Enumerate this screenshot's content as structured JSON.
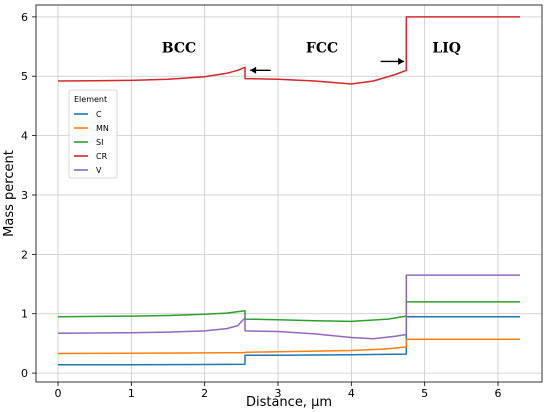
{
  "chart_data": {
    "type": "line",
    "xlabel": "Distance, µm",
    "ylabel": "Mass percent",
    "xlim": [
      -0.3,
      6.6
    ],
    "ylim": [
      -0.15,
      6.2
    ],
    "xticks": [
      0,
      1,
      2,
      3,
      4,
      5,
      6
    ],
    "yticks": [
      0,
      1,
      2,
      3,
      4,
      5,
      6
    ],
    "grid": true,
    "legend": {
      "title": "Element",
      "placement": "upper-left"
    },
    "series": [
      {
        "name": "C",
        "color": "#1f77b4",
        "x": [
          0,
          1,
          2,
          2.55,
          2.55,
          3,
          4,
          4.75,
          4.75,
          5.5,
          6.3
        ],
        "y": [
          0.14,
          0.14,
          0.145,
          0.15,
          0.3,
          0.3,
          0.31,
          0.32,
          0.95,
          0.95,
          0.95
        ]
      },
      {
        "name": "MN",
        "color": "#ff7f0e",
        "x": [
          0,
          1,
          2,
          2.55,
          2.55,
          3,
          3.5,
          4,
          4.5,
          4.75,
          4.75,
          5.5,
          6.3
        ],
        "y": [
          0.33,
          0.335,
          0.34,
          0.345,
          0.35,
          0.36,
          0.37,
          0.38,
          0.41,
          0.44,
          0.57,
          0.57,
          0.57
        ]
      },
      {
        "name": "SI",
        "color": "#2ca02c",
        "x": [
          0,
          1,
          1.5,
          2,
          2.3,
          2.55,
          2.55,
          3,
          3.5,
          4,
          4.5,
          4.75,
          4.75,
          5.5,
          6.3
        ],
        "y": [
          0.95,
          0.96,
          0.97,
          0.99,
          1.01,
          1.05,
          0.91,
          0.9,
          0.88,
          0.87,
          0.91,
          0.96,
          1.2,
          1.2,
          1.2
        ]
      },
      {
        "name": "CR",
        "color": "#d62728",
        "x": [
          0,
          0.5,
          1,
          1.5,
          2,
          2.3,
          2.45,
          2.55,
          2.55,
          3,
          3.5,
          4,
          4.3,
          4.6,
          4.75,
          4.75,
          5.5,
          6.3
        ],
        "y": [
          4.92,
          4.925,
          4.93,
          4.95,
          4.99,
          5.05,
          5.1,
          5.15,
          4.96,
          4.95,
          4.92,
          4.87,
          4.92,
          5.03,
          5.1,
          6.0,
          6.0,
          6.0
        ]
      },
      {
        "name": "V",
        "color": "#9467bd",
        "x": [
          0,
          1,
          1.5,
          2,
          2.3,
          2.45,
          2.55,
          2.55,
          3,
          3.5,
          4,
          4.3,
          4.6,
          4.75,
          4.75,
          5.5,
          6.3
        ],
        "y": [
          0.67,
          0.68,
          0.69,
          0.71,
          0.75,
          0.8,
          0.93,
          0.71,
          0.7,
          0.66,
          0.6,
          0.58,
          0.62,
          0.65,
          1.65,
          1.65,
          1.65
        ]
      }
    ],
    "annotations": [
      {
        "text": "BCC",
        "x": 1.65,
        "y": 5.4
      },
      {
        "text": "FCC",
        "x": 3.6,
        "y": 5.4
      },
      {
        "text": "LIQ",
        "x": 5.3,
        "y": 5.4
      }
    ],
    "arrows": [
      {
        "direction": "left",
        "x_from": 2.9,
        "x_to": 2.62,
        "y": 5.1
      },
      {
        "direction": "right",
        "x_from": 4.4,
        "x_to": 4.72,
        "y": 5.25
      }
    ]
  }
}
